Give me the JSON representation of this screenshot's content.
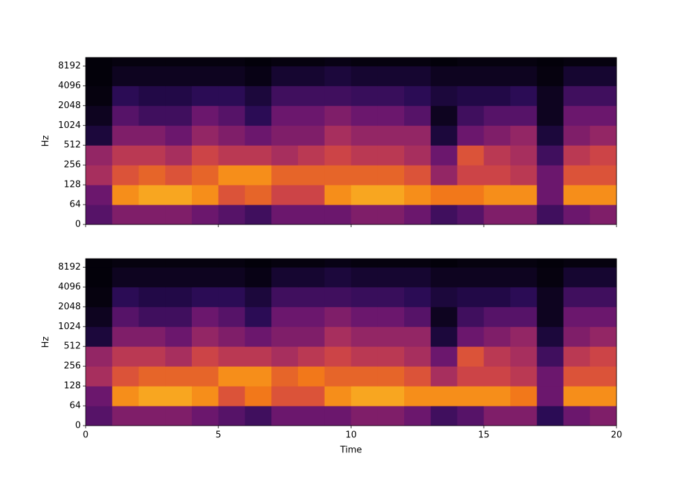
{
  "chart_data": [
    {
      "type": "spectrogram",
      "y_label": "Hz",
      "colormap": "magma",
      "yscale": "symlog",
      "linthresh": 64,
      "base": 2,
      "xlim": [
        0,
        20
      ],
      "ylim": [
        0,
        11025
      ],
      "yticks": [
        0,
        64,
        128,
        256,
        512,
        1024,
        2048,
        4096,
        8192
      ],
      "y_bins": [
        0,
        64,
        128,
        256,
        512,
        1024,
        2048,
        4096,
        8192
      ],
      "z": [
        [
          0.25,
          0.35,
          0.35,
          0.35,
          0.3,
          0.25,
          0.2,
          0.3,
          0.3,
          0.3,
          0.35,
          0.35,
          0.3,
          0.2,
          0.25,
          0.35,
          0.35,
          0.2,
          0.3,
          0.35
        ],
        [
          0.3,
          0.75,
          0.8,
          0.8,
          0.75,
          0.6,
          0.65,
          0.55,
          0.55,
          0.75,
          0.8,
          0.8,
          0.75,
          0.7,
          0.7,
          0.75,
          0.75,
          0.3,
          0.75,
          0.75
        ],
        [
          0.45,
          0.6,
          0.65,
          0.6,
          0.65,
          0.75,
          0.75,
          0.65,
          0.65,
          0.65,
          0.65,
          0.65,
          0.6,
          0.4,
          0.55,
          0.55,
          0.5,
          0.3,
          0.6,
          0.6
        ],
        [
          0.4,
          0.5,
          0.5,
          0.45,
          0.55,
          0.5,
          0.5,
          0.45,
          0.5,
          0.55,
          0.5,
          0.5,
          0.45,
          0.3,
          0.6,
          0.5,
          0.45,
          0.2,
          0.5,
          0.55
        ],
        [
          0.1,
          0.35,
          0.35,
          0.3,
          0.4,
          0.35,
          0.3,
          0.35,
          0.35,
          0.45,
          0.4,
          0.4,
          0.4,
          0.1,
          0.3,
          0.35,
          0.4,
          0.1,
          0.35,
          0.4
        ],
        [
          0.05,
          0.25,
          0.2,
          0.2,
          0.3,
          0.25,
          0.15,
          0.3,
          0.3,
          0.35,
          0.3,
          0.3,
          0.25,
          0.05,
          0.2,
          0.25,
          0.25,
          0.05,
          0.3,
          0.3
        ],
        [
          0.02,
          0.15,
          0.12,
          0.12,
          0.15,
          0.15,
          0.1,
          0.2,
          0.2,
          0.2,
          0.18,
          0.18,
          0.15,
          0.1,
          0.12,
          0.12,
          0.15,
          0.05,
          0.2,
          0.2
        ],
        [
          0.01,
          0.05,
          0.05,
          0.05,
          0.05,
          0.05,
          0.03,
          0.08,
          0.08,
          0.1,
          0.08,
          0.08,
          0.08,
          0.05,
          0.05,
          0.05,
          0.05,
          0.02,
          0.08,
          0.08
        ],
        [
          0.01,
          0.02,
          0.02,
          0.02,
          0.02,
          0.02,
          0.01,
          0.02,
          0.02,
          0.03,
          0.02,
          0.02,
          0.02,
          0.01,
          0.02,
          0.02,
          0.02,
          0.01,
          0.02,
          0.02
        ]
      ]
    },
    {
      "type": "spectrogram",
      "y_label": "Hz",
      "x_label": "Time",
      "colormap": "magma",
      "yscale": "symlog",
      "linthresh": 64,
      "base": 2,
      "xlim": [
        0,
        20
      ],
      "ylim": [
        0,
        11025
      ],
      "xticks": [
        0,
        5,
        10,
        15,
        20
      ],
      "yticks": [
        0,
        64,
        128,
        256,
        512,
        1024,
        2048,
        4096,
        8192
      ],
      "y_bins": [
        0,
        64,
        128,
        256,
        512,
        1024,
        2048,
        4096,
        8192
      ],
      "z": [
        [
          0.25,
          0.35,
          0.35,
          0.35,
          0.3,
          0.25,
          0.2,
          0.3,
          0.3,
          0.3,
          0.35,
          0.35,
          0.3,
          0.2,
          0.25,
          0.35,
          0.35,
          0.15,
          0.3,
          0.35
        ],
        [
          0.3,
          0.75,
          0.8,
          0.8,
          0.75,
          0.6,
          0.7,
          0.6,
          0.6,
          0.75,
          0.8,
          0.8,
          0.75,
          0.75,
          0.75,
          0.75,
          0.7,
          0.3,
          0.75,
          0.75
        ],
        [
          0.45,
          0.6,
          0.65,
          0.65,
          0.65,
          0.75,
          0.75,
          0.65,
          0.7,
          0.65,
          0.65,
          0.65,
          0.6,
          0.45,
          0.55,
          0.55,
          0.5,
          0.3,
          0.6,
          0.6
        ],
        [
          0.4,
          0.5,
          0.5,
          0.45,
          0.55,
          0.5,
          0.5,
          0.45,
          0.5,
          0.55,
          0.5,
          0.5,
          0.45,
          0.3,
          0.6,
          0.5,
          0.45,
          0.2,
          0.5,
          0.55
        ],
        [
          0.1,
          0.35,
          0.35,
          0.3,
          0.4,
          0.35,
          0.3,
          0.35,
          0.35,
          0.45,
          0.4,
          0.4,
          0.4,
          0.1,
          0.3,
          0.35,
          0.4,
          0.1,
          0.35,
          0.4
        ],
        [
          0.05,
          0.25,
          0.2,
          0.2,
          0.3,
          0.25,
          0.15,
          0.3,
          0.3,
          0.35,
          0.3,
          0.3,
          0.25,
          0.05,
          0.2,
          0.25,
          0.25,
          0.05,
          0.3,
          0.3
        ],
        [
          0.02,
          0.15,
          0.12,
          0.12,
          0.15,
          0.15,
          0.1,
          0.2,
          0.2,
          0.2,
          0.18,
          0.18,
          0.15,
          0.1,
          0.12,
          0.12,
          0.15,
          0.05,
          0.2,
          0.2
        ],
        [
          0.01,
          0.05,
          0.05,
          0.05,
          0.05,
          0.05,
          0.03,
          0.08,
          0.08,
          0.1,
          0.08,
          0.08,
          0.08,
          0.05,
          0.05,
          0.05,
          0.05,
          0.02,
          0.08,
          0.08
        ],
        [
          0.01,
          0.02,
          0.02,
          0.02,
          0.02,
          0.02,
          0.01,
          0.02,
          0.02,
          0.03,
          0.02,
          0.02,
          0.02,
          0.01,
          0.02,
          0.02,
          0.02,
          0.01,
          0.02,
          0.02
        ]
      ]
    }
  ]
}
